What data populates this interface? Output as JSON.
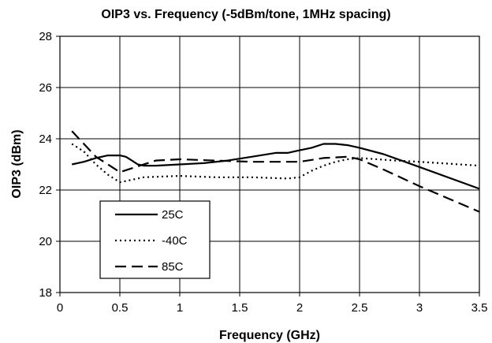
{
  "chart_data": {
    "type": "line",
    "title": "OIP3 vs. Frequency (-5dBm/tone, 1MHz spacing)",
    "xlabel": "Frequency (GHz)",
    "ylabel": "OIP3 (dBm)",
    "xlim": [
      0,
      3.5
    ],
    "ylim": [
      18,
      28
    ],
    "xticks": [
      "0",
      "0.5",
      "1",
      "1.5",
      "2",
      "2.5",
      "3",
      "3.5"
    ],
    "yticks": [
      "18",
      "20",
      "22",
      "24",
      "26",
      "28"
    ],
    "grid": true,
    "legend_position": "bottom-left",
    "series": [
      {
        "name": "25C",
        "style": "solid",
        "x": [
          0.1,
          0.2,
          0.3,
          0.4,
          0.5,
          0.55,
          0.6,
          0.65,
          0.7,
          0.8,
          1.0,
          1.2,
          1.4,
          1.6,
          1.8,
          1.9,
          2.0,
          2.1,
          2.2,
          2.3,
          2.4,
          2.5,
          2.7,
          3.0,
          3.5
        ],
        "y": [
          23.0,
          23.1,
          23.25,
          23.35,
          23.35,
          23.3,
          23.15,
          23.0,
          22.95,
          22.95,
          23.0,
          23.05,
          23.15,
          23.3,
          23.45,
          23.45,
          23.55,
          23.65,
          23.8,
          23.8,
          23.75,
          23.65,
          23.4,
          22.9,
          22.05
        ]
      },
      {
        "name": "-40C",
        "style": "dotted",
        "x": [
          0.1,
          0.2,
          0.3,
          0.4,
          0.5,
          0.7,
          1.0,
          1.3,
          1.6,
          1.9,
          2.0,
          2.1,
          2.2,
          2.3,
          2.4,
          2.5,
          2.8,
          3.0,
          3.5
        ],
        "y": [
          23.8,
          23.5,
          23.0,
          22.6,
          22.3,
          22.5,
          22.55,
          22.5,
          22.5,
          22.45,
          22.5,
          22.75,
          22.95,
          23.1,
          23.2,
          23.25,
          23.15,
          23.1,
          22.95
        ]
      },
      {
        "name": "85C",
        "style": "dashed",
        "x": [
          0.1,
          0.2,
          0.3,
          0.4,
          0.5,
          0.6,
          0.8,
          1.0,
          1.3,
          1.6,
          2.0,
          2.2,
          2.4,
          2.5,
          2.7,
          3.0,
          3.5
        ],
        "y": [
          24.3,
          23.8,
          23.3,
          23.0,
          22.7,
          22.85,
          23.15,
          23.2,
          23.15,
          23.1,
          23.1,
          23.25,
          23.3,
          23.2,
          22.8,
          22.15,
          21.15
        ]
      }
    ]
  }
}
